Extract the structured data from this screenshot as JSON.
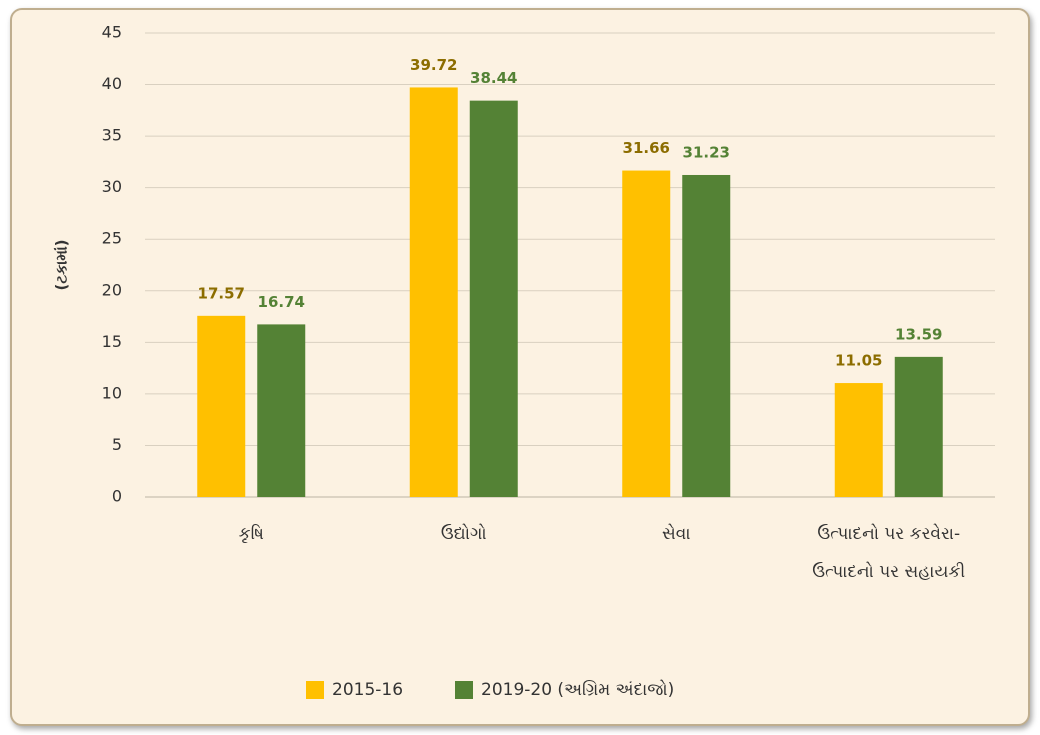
{
  "chart_data": {
    "type": "bar",
    "y_label": "(ટકામાં)",
    "categories": [
      "કૃષિ",
      "ઉદ્યોગો",
      "સેવા",
      "ઉત્પાદનો પર કરવેરા- ઉત્પાદનો પર સહાયકી"
    ],
    "series": [
      {
        "name": "2015-16",
        "color": "#ffc000",
        "label_color": "#8c6d00",
        "values": [
          17.57,
          39.72,
          31.66,
          11.05
        ]
      },
      {
        "name": "2019-20 (અગ્રિમ અંદાજો)",
        "color": "#548235",
        "label_color": "#548235",
        "values": [
          16.74,
          38.44,
          31.23,
          13.59
        ]
      }
    ],
    "ylim": [
      0,
      45
    ],
    "yticks": [
      0,
      5,
      10,
      15,
      20,
      25,
      30,
      35,
      40,
      45
    ],
    "grid": true,
    "legend": "bottom"
  }
}
